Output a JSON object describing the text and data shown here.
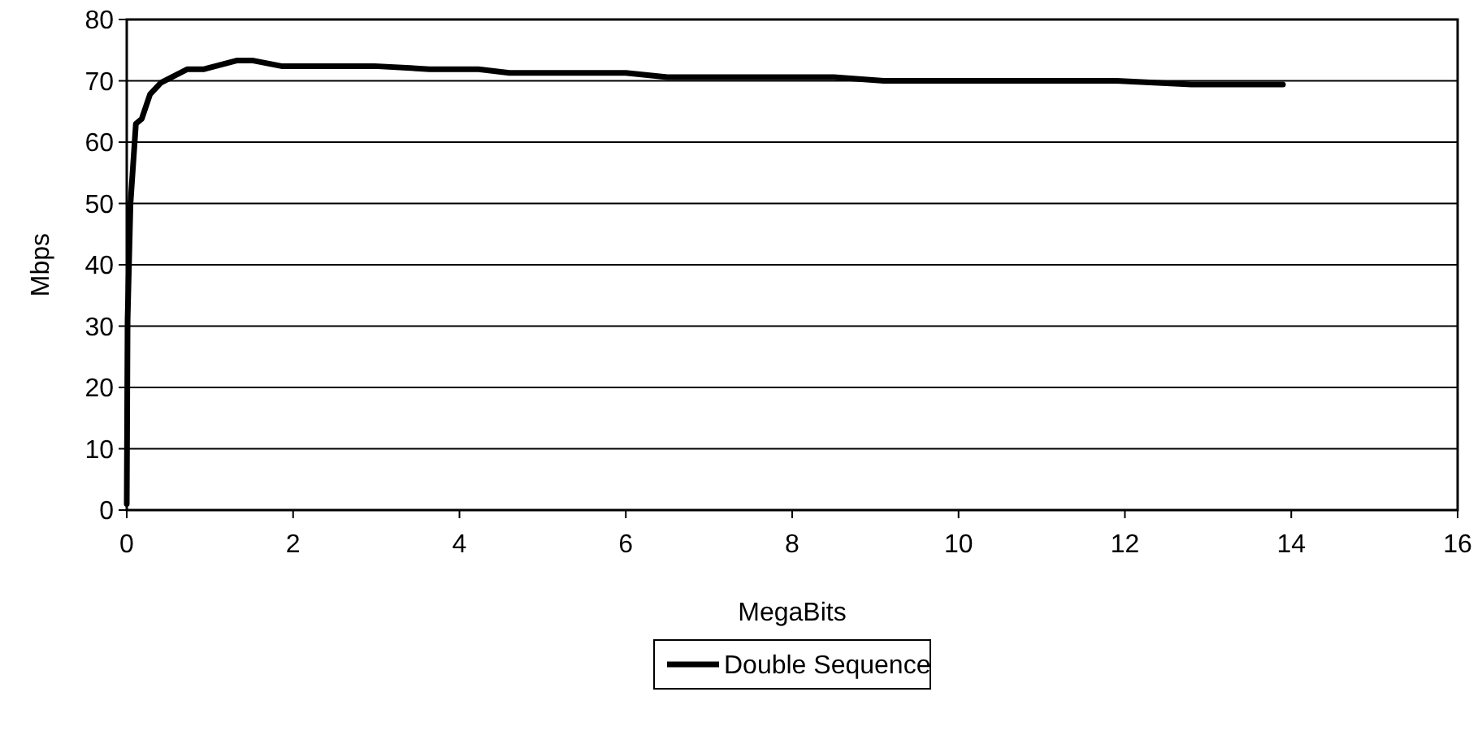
{
  "chart_data": {
    "type": "line",
    "xlabel": "MegaBits",
    "ylabel": "Mbps",
    "xlim": [
      0,
      16
    ],
    "xticks": [
      0,
      2,
      4,
      6,
      8,
      10,
      12,
      14,
      16
    ],
    "ylim": [
      0,
      80
    ],
    "yticks": [
      0,
      10,
      20,
      30,
      40,
      50,
      60,
      70,
      80
    ],
    "grid": "y",
    "legend": "bottom",
    "marker": "none",
    "line_style": "solid",
    "series": [
      {
        "name": "Double Sequence",
        "color": "#000000",
        "x": [
          0,
          0.01,
          0.045,
          0.09,
          0.11,
          0.18,
          0.28,
          0.41,
          0.73,
          0.93,
          1.32,
          1.52,
          1.86,
          2.98,
          3.64,
          4.23,
          4.6,
          6,
          6.5,
          8.5,
          9.1,
          11.9,
          12.8,
          13.9
        ],
        "values": [
          1,
          31,
          50,
          59,
          63,
          63.8,
          67.8,
          69.7,
          71.9,
          71.9,
          73.3,
          73.3,
          72.4,
          72.4,
          71.9,
          71.9,
          71.3,
          71.3,
          70.6,
          70.6,
          70,
          70,
          69.4,
          69.4
        ]
      }
    ]
  }
}
